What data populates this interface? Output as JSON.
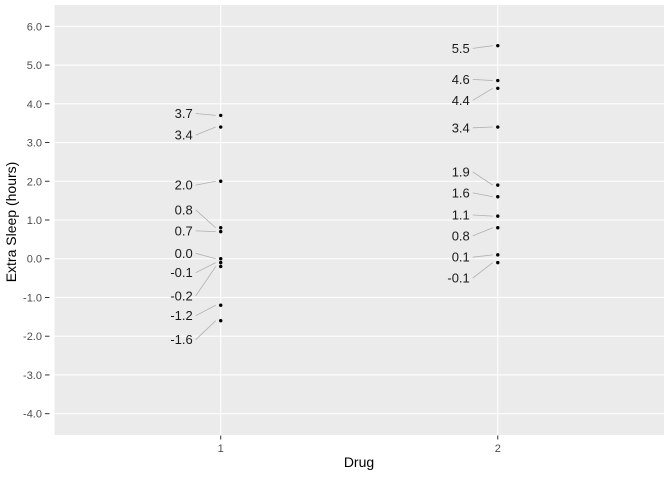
{
  "chart_data": {
    "type": "scatter",
    "title": "",
    "xlabel": "Drug",
    "ylabel": "Extra Sleep (hours)",
    "x_categories": [
      "1",
      "2"
    ],
    "ylim": [
      -4.55,
      6.55
    ],
    "yticks": [
      6.0,
      5.0,
      4.0,
      3.0,
      2.0,
      1.0,
      0.0,
      -1.0,
      -2.0,
      -3.0,
      -4.0
    ],
    "ytick_labels": [
      "6.0",
      "5.0",
      "4.0",
      "3.0",
      "2.0",
      "1.0",
      "0.0",
      "-1.0",
      "-2.0",
      "-3.0",
      "-4.0"
    ],
    "grid": "major-horizontal-and-category-vertical",
    "legend": "none",
    "series": [
      {
        "name": "Drug 1",
        "category": "1",
        "points": [
          {
            "label": "3.7",
            "value": 3.7,
            "label_at": 3.75
          },
          {
            "label": "3.4",
            "value": 3.4,
            "label_at": 3.19
          },
          {
            "label": "2.0",
            "value": 2.0,
            "label_at": 1.9
          },
          {
            "label": "0.8",
            "value": 0.8,
            "label_at": 1.26
          },
          {
            "label": "0.7",
            "value": 0.7,
            "label_at": 0.72
          },
          {
            "label": "0.0",
            "value": 0.0,
            "label_at": 0.14
          },
          {
            "label": "-0.1",
            "value": -0.1,
            "label_at": -0.36
          },
          {
            "label": "-0.2",
            "value": -0.2,
            "label_at": -0.96
          },
          {
            "label": "-1.2",
            "value": -1.2,
            "label_at": -1.47
          },
          {
            "label": "-1.6",
            "value": -1.6,
            "label_at": -2.09
          }
        ]
      },
      {
        "name": "Drug 2",
        "category": "2",
        "points": [
          {
            "label": "5.5",
            "value": 5.5,
            "label_at": 5.43
          },
          {
            "label": "4.6",
            "value": 4.6,
            "label_at": 4.63
          },
          {
            "label": "4.4",
            "value": 4.4,
            "label_at": 4.09
          },
          {
            "label": "3.4",
            "value": 3.4,
            "label_at": 3.38
          },
          {
            "label": "1.9",
            "value": 1.9,
            "label_at": 2.24
          },
          {
            "label": "1.6",
            "value": 1.6,
            "label_at": 1.7
          },
          {
            "label": "1.1",
            "value": 1.1,
            "label_at": 1.13
          },
          {
            "label": "0.8",
            "value": 0.8,
            "label_at": 0.59
          },
          {
            "label": "0.1",
            "value": 0.1,
            "label_at": 0.04
          },
          {
            "label": "-0.1",
            "value": -0.1,
            "label_at": -0.5
          }
        ]
      }
    ],
    "colors": {
      "outer_background": "#ffffff",
      "panel_background": "#ebebeb",
      "gridline": "#ffffff",
      "tick_mark": "#333333",
      "tick_label": "#4d4d4d",
      "axis_title": "#000000",
      "point": "#000000",
      "point_label": "#1a1a1a",
      "leader_line": "#b0b0b0"
    }
  }
}
